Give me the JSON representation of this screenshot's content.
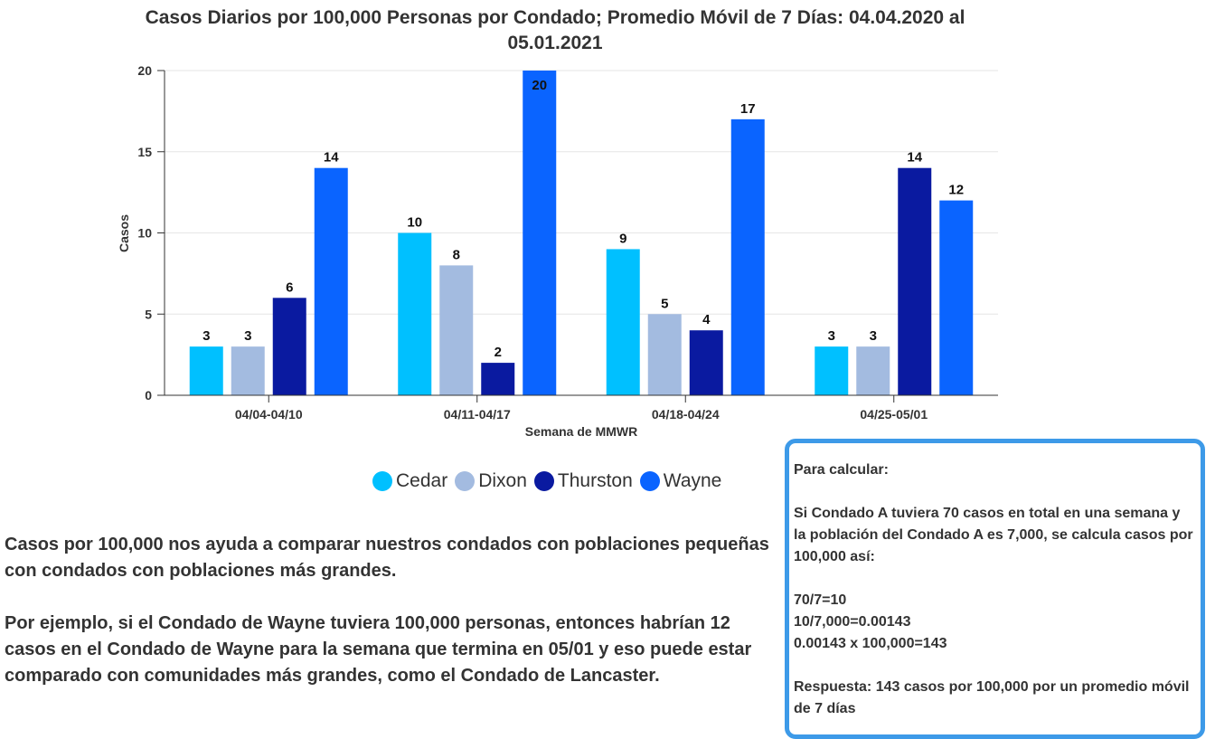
{
  "chart_data": {
    "type": "bar",
    "title_lines": [
      "Casos Diarios por 100,000 Personas por Condado; Promedio Móvil de 7 Días: 04.04.2020 al",
      "05.01.2021"
    ],
    "categories": [
      "04/04-04/10",
      "04/11-04/17",
      "04/18-04/24",
      "04/25-05/01"
    ],
    "series": [
      {
        "name": "Cedar",
        "color": "#00c0ff",
        "values": [
          3,
          10,
          9,
          3
        ]
      },
      {
        "name": "Dixon",
        "color": "#a3bbe0",
        "values": [
          3,
          8,
          5,
          3
        ]
      },
      {
        "name": "Thurston",
        "color": "#0a1aa0",
        "values": [
          6,
          2,
          4,
          14
        ]
      },
      {
        "name": "Wayne",
        "color": "#0a64ff",
        "values": [
          14,
          20,
          17,
          12
        ]
      }
    ],
    "xlabel": "Semana de MMWR",
    "ylabel": "Casos",
    "ylim": [
      0,
      20
    ],
    "yticks": [
      0,
      5,
      10,
      15,
      20
    ],
    "grid": true,
    "legend_position": "bottom"
  },
  "notes": {
    "paragraph1": "Casos por 100,000 nos ayuda a comparar nuestros condados con poblaciones pequeñas con condados con poblaciones más grandes.",
    "paragraph2": "Por ejemplo, si el Condado de Wayne tuviera 100,000 personas, entonces habrían 12 casos en el Condado de Wayne para la semana que termina en 05/01 y eso puede estar comparado con comunidades más grandes, como el Condado de Lancaster."
  },
  "calc_box": {
    "heading": "Para calcular:",
    "example": "Si Condado A tuviera 70 casos en total en una semana y la población del Condado A es 7,000, se calcula casos por 100,000 así:",
    "eq1": "70/7=10",
    "eq2": "10/7,000=0.00143",
    "eq3": "0.00143 x 100,000=143",
    "answer": "Respuesta: 143 casos por 100,000 por un promedio móvil de 7 días"
  }
}
